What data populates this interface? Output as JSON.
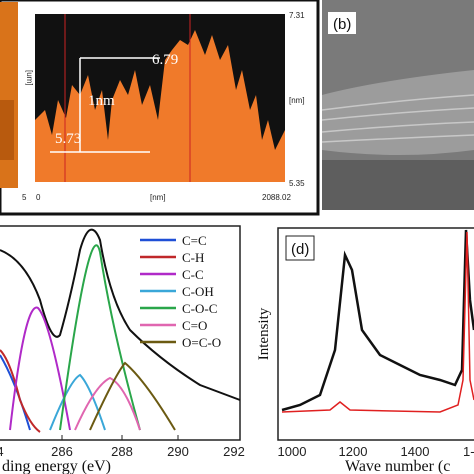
{
  "panel_a": {
    "profile_labels": {
      "top": "6.79",
      "bottom": "5.73",
      "step": "1nm"
    },
    "axis": {
      "y_max": "7.31",
      "y_min": "5.35",
      "y_unit": "[nm]",
      "x_min": "0",
      "x_unit": "[nm]",
      "x_max": "2088.02"
    },
    "image_axis": {
      "unit": "[um]",
      "tick": "5"
    }
  },
  "panel_b": {
    "label": "(b)"
  },
  "panel_c": {
    "legend": [
      "C=C",
      "C-H",
      "C-C",
      "C-OH",
      "C-O-C",
      "C=O",
      "O=C-O"
    ],
    "xticks": [
      "286",
      "288",
      "290",
      "292"
    ],
    "xlabel": "ding energy (eV)",
    "cut_tick": "4"
  },
  "panel_d": {
    "label": "(d)",
    "ylabel": "Intensity",
    "xticks": [
      "1000",
      "1200",
      "1400",
      "1-"
    ],
    "xlabel": "Wave number (c"
  }
}
